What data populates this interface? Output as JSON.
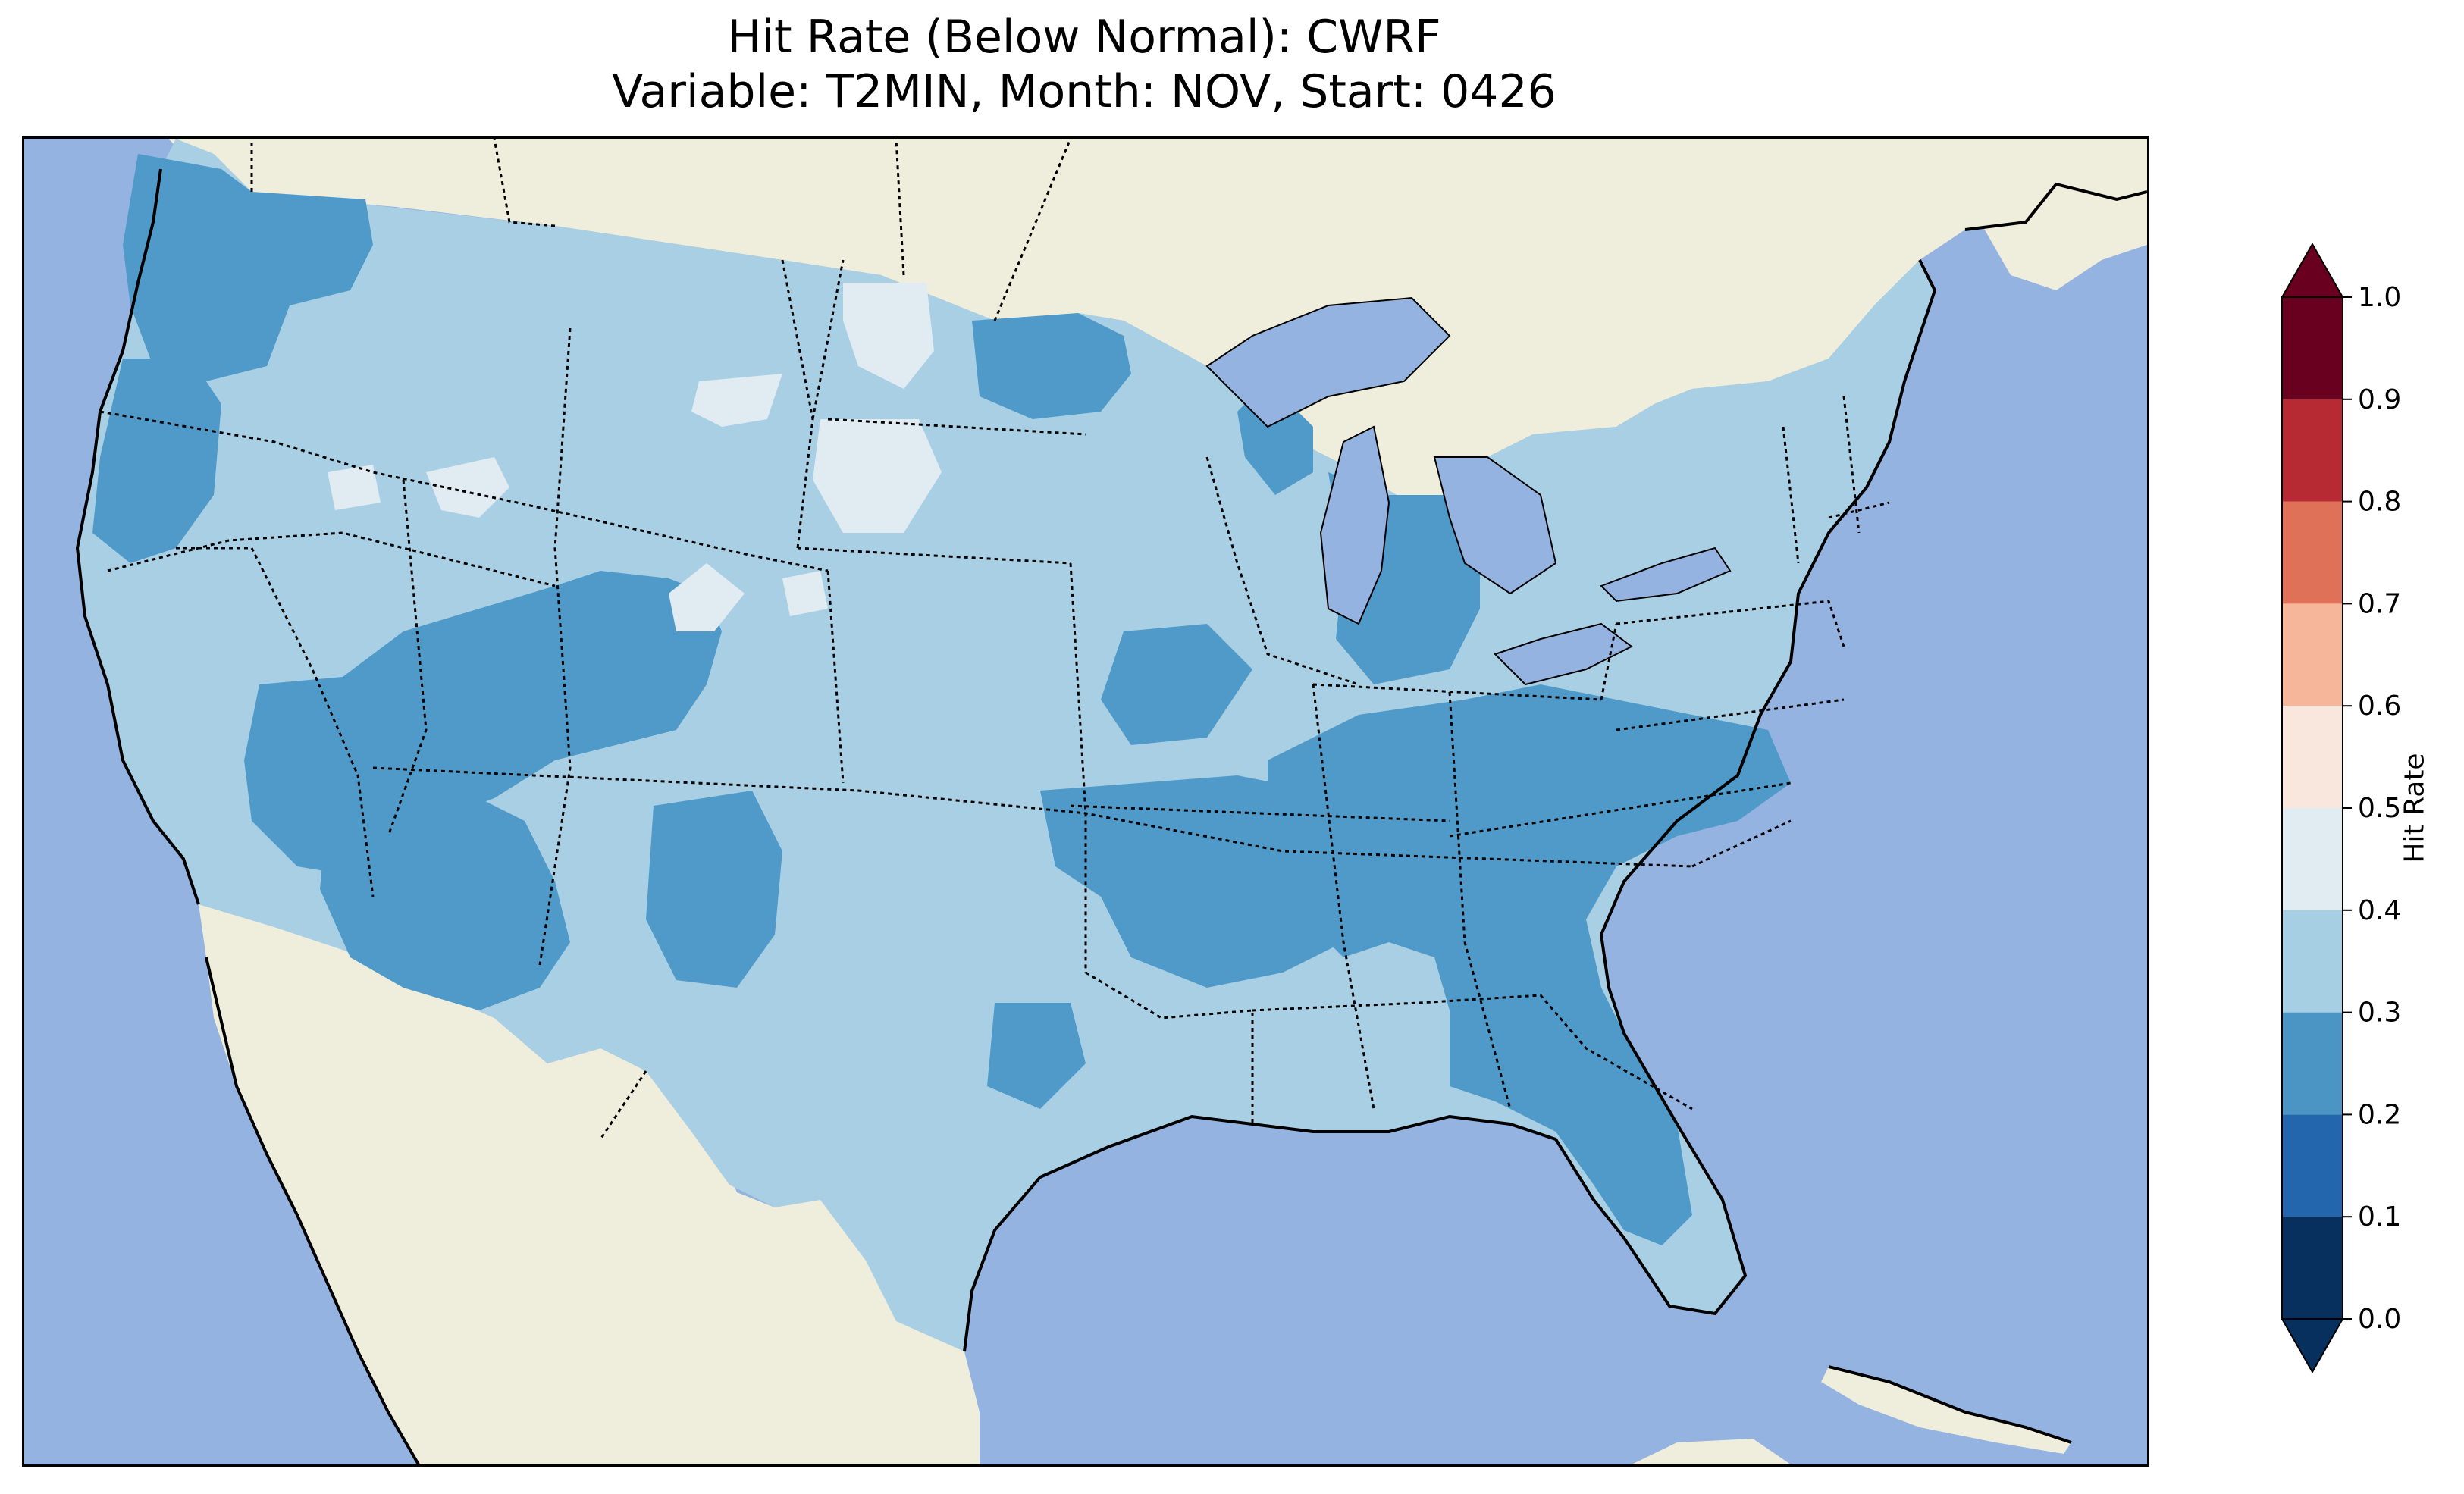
{
  "title": {
    "line1": "Hit Rate (Below Normal): CWRF",
    "line2": "Variable: T2MIN, Month: NOV, Start: 0426"
  },
  "colors": {
    "ocean": "#95b3e0",
    "land": "#efeddb",
    "lakes": "#95b3e0",
    "class_0_2_to_0_3": "#4f9ac9",
    "class_0_3_to_0_4": "#a8cfe3",
    "class_0_4_to_0_5": "#e1ebf2"
  },
  "colorbar": {
    "label": "Hit Rate",
    "ticks": [
      "0.0",
      "0.1",
      "0.2",
      "0.3",
      "0.4",
      "0.5",
      "0.6",
      "0.7",
      "0.8",
      "0.9",
      "1.0"
    ],
    "bins": [
      {
        "from": 0.0,
        "to": 0.1,
        "color": "#08305e"
      },
      {
        "from": 0.1,
        "to": 0.2,
        "color": "#2466ad"
      },
      {
        "from": 0.2,
        "to": 0.3,
        "color": "#4b95c5"
      },
      {
        "from": 0.3,
        "to": 0.4,
        "color": "#a7cfe4"
      },
      {
        "from": 0.4,
        "to": 0.5,
        "color": "#e0ebf2"
      },
      {
        "from": 0.5,
        "to": 0.6,
        "color": "#f9e6dc"
      },
      {
        "from": 0.6,
        "to": 0.7,
        "color": "#f5b699"
      },
      {
        "from": 0.7,
        "to": 0.8,
        "color": "#de7158"
      },
      {
        "from": 0.8,
        "to": 0.9,
        "color": "#b72a33"
      },
      {
        "from": 0.9,
        "to": 1.0,
        "color": "#6a0020"
      }
    ],
    "extend": "both"
  }
}
